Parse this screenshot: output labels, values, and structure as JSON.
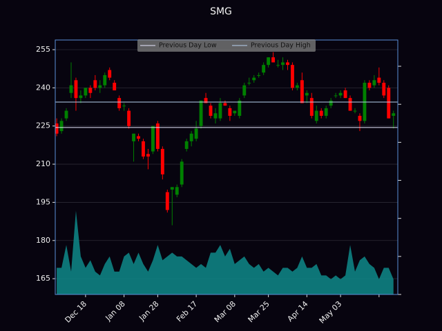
{
  "chart_data": {
    "type": "candlestick",
    "title": "SMG",
    "x": [
      0,
      1,
      2,
      3,
      4,
      5,
      6,
      7,
      8,
      9,
      10,
      11,
      12,
      13,
      14,
      15,
      16,
      17,
      18,
      19,
      20,
      21,
      22,
      23,
      24,
      25,
      26,
      27,
      28,
      29,
      30,
      31,
      32,
      33,
      34,
      35,
      36,
      37,
      38,
      39,
      40,
      41,
      42,
      43,
      44,
      45,
      46,
      47,
      48,
      49,
      50,
      51,
      52,
      53,
      54,
      55,
      56,
      57,
      58,
      59,
      60,
      61,
      62,
      63,
      64,
      65,
      66,
      67,
      68,
      69,
      70
    ],
    "open": [
      226,
      223,
      228,
      238,
      243,
      236,
      237,
      240,
      243,
      240,
      241,
      247,
      242,
      236,
      233,
      231,
      219,
      221,
      219,
      214,
      215,
      226,
      216,
      199,
      200,
      198,
      202,
      216,
      219,
      220,
      225,
      236,
      233,
      228,
      228,
      234,
      232,
      230,
      229,
      237,
      242,
      243,
      245,
      246,
      249,
      252,
      249,
      249,
      250,
      249,
      240,
      243,
      237,
      236,
      227,
      231,
      229,
      233,
      237,
      237,
      239,
      236,
      231,
      229,
      227,
      242,
      241,
      244,
      242,
      240,
      229
    ],
    "high": [
      228,
      228,
      232,
      250,
      244,
      239,
      240,
      241,
      245,
      243,
      246,
      248,
      243,
      237,
      234,
      232,
      222,
      222,
      220,
      216,
      225,
      227,
      217,
      200,
      201,
      202,
      212,
      220,
      223,
      227,
      235,
      238,
      234,
      232,
      236,
      235,
      233,
      231,
      236,
      242,
      244,
      245,
      246,
      250,
      252,
      254,
      251,
      252,
      251,
      250,
      242,
      246,
      239,
      238,
      233,
      232,
      233,
      236,
      238,
      239,
      240,
      237,
      232,
      230,
      243,
      243,
      245,
      248,
      243,
      241,
      231
    ],
    "low": [
      221,
      222,
      227,
      236,
      231,
      234,
      236,
      236,
      239,
      238,
      240,
      243,
      239,
      231,
      231,
      224,
      211,
      219,
      212,
      208,
      214,
      215,
      204,
      191,
      186,
      197,
      201,
      215,
      217,
      219,
      224,
      234,
      228,
      226,
      227,
      233,
      227,
      229,
      228,
      236,
      241,
      242,
      244,
      245,
      248,
      251,
      248,
      247,
      247,
      239,
      239,
      234,
      234,
      228,
      226,
      228,
      228,
      232,
      236,
      236,
      236,
      231,
      230,
      223,
      226,
      239,
      240,
      241,
      236,
      228,
      224
    ],
    "close": [
      222,
      227,
      231,
      241,
      236,
      237,
      240,
      238,
      240,
      241,
      245,
      244,
      239,
      232,
      233,
      225,
      222,
      220,
      213,
      213,
      225,
      216,
      206,
      192,
      201,
      201,
      211,
      219,
      222,
      224,
      235,
      234,
      229,
      230,
      234,
      233,
      229,
      231,
      235,
      241,
      242,
      244,
      245,
      249,
      252,
      250,
      249,
      250,
      249,
      240,
      241,
      234,
      238,
      229,
      231,
      229,
      232,
      235,
      237,
      238,
      236,
      231,
      231,
      227,
      242,
      240,
      243,
      242,
      237,
      228,
      230
    ],
    "up_color": "#008000",
    "down_color": "#ff0000",
    "xlim": [
      -0.3,
      70.9
    ],
    "xticks": [
      {
        "value": 6,
        "label": "Dec 18"
      },
      {
        "value": 14,
        "label": "Jan 08"
      },
      {
        "value": 21,
        "label": "Jan 28"
      },
      {
        "value": 29,
        "label": "Feb 17"
      },
      {
        "value": 37,
        "label": "Mar 08"
      },
      {
        "value": 44,
        "label": "Mar 25"
      },
      {
        "value": 52,
        "label": "Apr 14"
      },
      {
        "value": 59,
        "label": "May 03"
      },
      {
        "value": 67,
        "label": null
      }
    ],
    "ylim": [
      158.8,
      258.8
    ],
    "yticks": [
      165,
      180,
      195,
      210,
      225,
      240,
      255
    ],
    "grid": true,
    "hlines": [
      {
        "name": "Previous Day Low",
        "value": 224.4,
        "color": "#e8e8ff"
      },
      {
        "name": "Previous Day High",
        "value": 234.4,
        "color": "#b8d4f0"
      }
    ],
    "legend": "upper center",
    "volume": {
      "type": "area",
      "axis": "y2",
      "color": "#0e8a8a",
      "values": [
        0.7,
        0.7,
        1.3,
        0.6,
        2.2,
        1.0,
        0.7,
        0.9,
        0.6,
        0.5,
        0.8,
        1.0,
        0.6,
        0.6,
        1.0,
        1.1,
        0.8,
        1.1,
        0.8,
        0.6,
        0.9,
        1.3,
        0.9,
        1.0,
        1.1,
        1.0,
        1.0,
        0.9,
        0.8,
        0.7,
        0.8,
        0.7,
        1.1,
        1.1,
        1.3,
        1.0,
        1.2,
        0.8,
        0.9,
        1.0,
        0.8,
        0.7,
        0.8,
        0.6,
        0.7,
        0.6,
        0.5,
        0.7,
        0.7,
        0.6,
        0.7,
        1.0,
        0.7,
        0.7,
        0.8,
        0.5,
        0.5,
        0.4,
        0.5,
        0.4,
        0.5,
        1.3,
        0.6,
        0.9,
        1.0,
        0.8,
        0.7,
        0.4,
        0.7,
        0.7,
        0.4
      ]
    },
    "y2lim": [
      0,
      6.69
    ],
    "y2ticks": [
      0,
      1,
      2,
      3,
      4,
      5,
      6
    ]
  }
}
